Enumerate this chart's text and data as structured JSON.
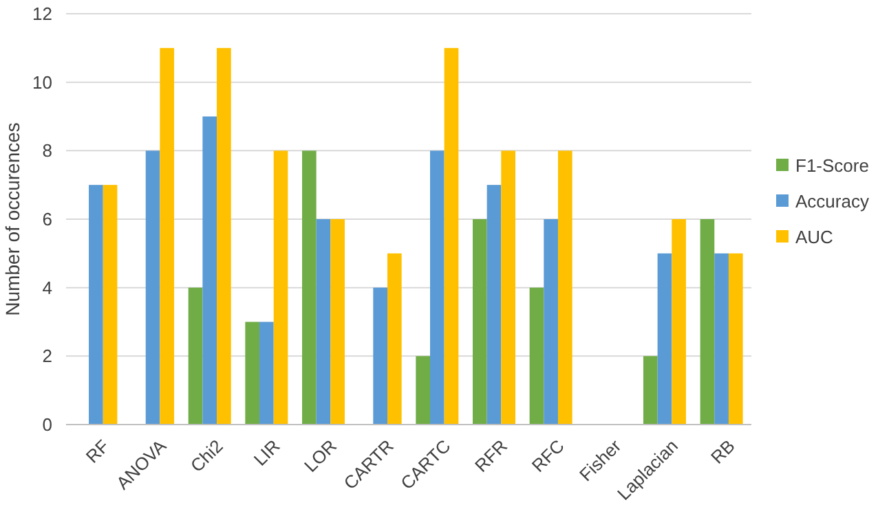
{
  "chart_data": {
    "type": "bar",
    "ylabel": "Number of occurences",
    "categories": [
      "RF",
      "ANOVA",
      "Chi2",
      "LIR",
      "LOR",
      "CARTR",
      "CARTC",
      "RFR",
      "RFC",
      "Fisher",
      "Laplacian",
      "RB"
    ],
    "series": [
      {
        "name": "F1-Score",
        "color": "#70ad47",
        "values": [
          0,
          0,
          4,
          3,
          8,
          0,
          2,
          6,
          4,
          0,
          2,
          6
        ]
      },
      {
        "name": "Accuracy",
        "color": "#5b9bd5",
        "values": [
          7,
          8,
          9,
          3,
          6,
          4,
          8,
          7,
          6,
          0,
          5,
          5
        ]
      },
      {
        "name": "AUC",
        "color": "#ffc000",
        "values": [
          7,
          11,
          11,
          8,
          6,
          5,
          11,
          8,
          8,
          0,
          6,
          5
        ]
      }
    ],
    "ylim": [
      0,
      12
    ],
    "yticks": [
      0,
      2,
      4,
      6,
      8,
      10,
      12
    ],
    "grid": "y",
    "legend": "right"
  }
}
